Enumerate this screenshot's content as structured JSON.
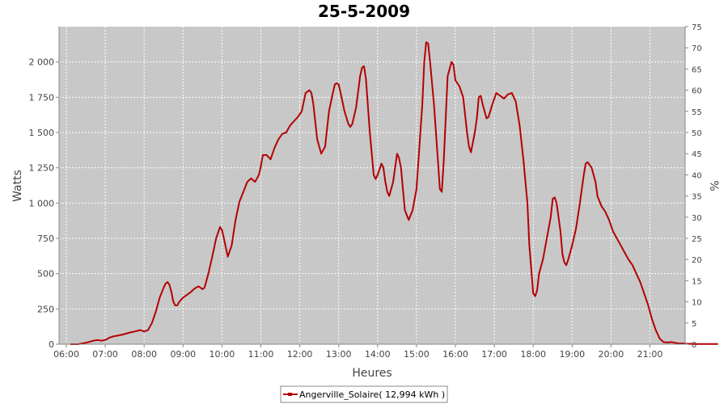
{
  "chart_data": {
    "type": "line",
    "title": "25-5-2009",
    "xlabel": "Heures",
    "ylabel": "Watts",
    "y2label": "%",
    "xlim": [
      6.0,
      22.0
    ],
    "ylim": [
      0,
      2250
    ],
    "y2lim": [
      0,
      75
    ],
    "x_ticks": [
      6,
      7,
      8,
      9,
      10,
      11,
      12,
      13,
      14,
      15,
      16,
      17,
      18,
      19,
      20,
      21
    ],
    "x_tick_labels": [
      "06:00",
      "07:00",
      "08:00",
      "09:00",
      "10:00",
      "11:00",
      "12:00",
      "13:00",
      "14:00",
      "15:00",
      "16:00",
      "17:00",
      "18:00",
      "19:00",
      "20:00",
      "21:00"
    ],
    "y_ticks": [
      0,
      250,
      500,
      750,
      1000,
      1250,
      1500,
      1750,
      2000
    ],
    "y_tick_labels": [
      "0",
      "250",
      "500",
      "750",
      "1 000",
      "1 250",
      "1 500",
      "1 750",
      "2 000"
    ],
    "y2_ticks": [
      0,
      5,
      10,
      15,
      20,
      25,
      30,
      35,
      40,
      45,
      50,
      55,
      60,
      65,
      70,
      75
    ],
    "grid": true,
    "legend_position": "bottom-center",
    "colors": {
      "series": "#b40000",
      "plot_background": "#c8c8c8",
      "grid": "#ffffff"
    },
    "series": [
      {
        "name": "Angerville_Solaire( 12,994 kWh )",
        "points": [
          [
            6.1,
            0
          ],
          [
            6.3,
            0
          ],
          [
            6.5,
            10
          ],
          [
            6.7,
            25
          ],
          [
            6.8,
            30
          ],
          [
            6.9,
            25
          ],
          [
            7.0,
            30
          ],
          [
            7.1,
            45
          ],
          [
            7.2,
            55
          ],
          [
            7.4,
            65
          ],
          [
            7.6,
            80
          ],
          [
            7.75,
            90
          ],
          [
            7.9,
            100
          ],
          [
            8.0,
            90
          ],
          [
            8.1,
            100
          ],
          [
            8.2,
            150
          ],
          [
            8.3,
            230
          ],
          [
            8.4,
            330
          ],
          [
            8.5,
            400
          ],
          [
            8.55,
            430
          ],
          [
            8.6,
            440
          ],
          [
            8.65,
            420
          ],
          [
            8.7,
            370
          ],
          [
            8.75,
            300
          ],
          [
            8.8,
            275
          ],
          [
            8.85,
            275
          ],
          [
            8.9,
            300
          ],
          [
            9.0,
            330
          ],
          [
            9.1,
            350
          ],
          [
            9.2,
            370
          ],
          [
            9.3,
            395
          ],
          [
            9.4,
            410
          ],
          [
            9.45,
            400
          ],
          [
            9.5,
            390
          ],
          [
            9.55,
            400
          ],
          [
            9.65,
            500
          ],
          [
            9.75,
            620
          ],
          [
            9.85,
            750
          ],
          [
            9.95,
            830
          ],
          [
            10.0,
            810
          ],
          [
            10.05,
            750
          ],
          [
            10.15,
            620
          ],
          [
            10.25,
            700
          ],
          [
            10.35,
            880
          ],
          [
            10.45,
            1010
          ],
          [
            10.55,
            1080
          ],
          [
            10.65,
            1150
          ],
          [
            10.75,
            1175
          ],
          [
            10.85,
            1150
          ],
          [
            10.95,
            1200
          ],
          [
            11.0,
            1260
          ],
          [
            11.05,
            1340
          ],
          [
            11.15,
            1340
          ],
          [
            11.25,
            1310
          ],
          [
            11.35,
            1390
          ],
          [
            11.45,
            1450
          ],
          [
            11.55,
            1490
          ],
          [
            11.65,
            1500
          ],
          [
            11.75,
            1550
          ],
          [
            11.85,
            1580
          ],
          [
            11.95,
            1610
          ],
          [
            12.05,
            1650
          ],
          [
            12.15,
            1780
          ],
          [
            12.25,
            1800
          ],
          [
            12.3,
            1780
          ],
          [
            12.35,
            1700
          ],
          [
            12.45,
            1450
          ],
          [
            12.55,
            1350
          ],
          [
            12.65,
            1400
          ],
          [
            12.75,
            1650
          ],
          [
            12.85,
            1780
          ],
          [
            12.9,
            1840
          ],
          [
            12.95,
            1850
          ],
          [
            13.0,
            1840
          ],
          [
            13.05,
            1780
          ],
          [
            13.15,
            1650
          ],
          [
            13.25,
            1560
          ],
          [
            13.3,
            1540
          ],
          [
            13.35,
            1560
          ],
          [
            13.45,
            1680
          ],
          [
            13.55,
            1900
          ],
          [
            13.6,
            1960
          ],
          [
            13.65,
            1970
          ],
          [
            13.7,
            1880
          ],
          [
            13.8,
            1500
          ],
          [
            13.9,
            1200
          ],
          [
            13.95,
            1170
          ],
          [
            14.0,
            1200
          ],
          [
            14.1,
            1280
          ],
          [
            14.15,
            1250
          ],
          [
            14.2,
            1150
          ],
          [
            14.25,
            1080
          ],
          [
            14.3,
            1050
          ],
          [
            14.4,
            1150
          ],
          [
            14.5,
            1350
          ],
          [
            14.55,
            1320
          ],
          [
            14.6,
            1250
          ],
          [
            14.65,
            1100
          ],
          [
            14.7,
            950
          ],
          [
            14.8,
            880
          ],
          [
            14.9,
            950
          ],
          [
            15.0,
            1100
          ],
          [
            15.05,
            1300
          ],
          [
            15.15,
            1700
          ],
          [
            15.2,
            2000
          ],
          [
            15.25,
            2140
          ],
          [
            15.3,
            2130
          ],
          [
            15.35,
            2000
          ],
          [
            15.45,
            1700
          ],
          [
            15.55,
            1300
          ],
          [
            15.6,
            1100
          ],
          [
            15.65,
            1080
          ],
          [
            15.7,
            1300
          ],
          [
            15.8,
            1900
          ],
          [
            15.9,
            2000
          ],
          [
            15.95,
            1980
          ],
          [
            16.0,
            1870
          ],
          [
            16.1,
            1830
          ],
          [
            16.2,
            1750
          ],
          [
            16.3,
            1500
          ],
          [
            16.35,
            1400
          ],
          [
            16.4,
            1360
          ],
          [
            16.5,
            1500
          ],
          [
            16.55,
            1600
          ],
          [
            16.6,
            1750
          ],
          [
            16.65,
            1760
          ],
          [
            16.7,
            1700
          ],
          [
            16.8,
            1600
          ],
          [
            16.85,
            1610
          ],
          [
            16.95,
            1700
          ],
          [
            17.05,
            1780
          ],
          [
            17.15,
            1760
          ],
          [
            17.25,
            1740
          ],
          [
            17.35,
            1770
          ],
          [
            17.45,
            1780
          ],
          [
            17.55,
            1720
          ],
          [
            17.65,
            1550
          ],
          [
            17.75,
            1300
          ],
          [
            17.85,
            1000
          ],
          [
            17.9,
            700
          ],
          [
            18.0,
            360
          ],
          [
            18.05,
            340
          ],
          [
            18.1,
            380
          ],
          [
            18.15,
            500
          ],
          [
            18.25,
            600
          ],
          [
            18.35,
            750
          ],
          [
            18.45,
            900
          ],
          [
            18.5,
            1030
          ],
          [
            18.55,
            1040
          ],
          [
            18.6,
            1000
          ],
          [
            18.7,
            800
          ],
          [
            18.75,
            640
          ],
          [
            18.8,
            580
          ],
          [
            18.85,
            560
          ],
          [
            18.9,
            600
          ],
          [
            19.0,
            700
          ],
          [
            19.1,
            820
          ],
          [
            19.2,
            1000
          ],
          [
            19.3,
            1200
          ],
          [
            19.35,
            1280
          ],
          [
            19.4,
            1290
          ],
          [
            19.5,
            1250
          ],
          [
            19.6,
            1150
          ],
          [
            19.65,
            1050
          ],
          [
            19.75,
            980
          ],
          [
            19.85,
            940
          ],
          [
            19.95,
            880
          ],
          [
            20.05,
            800
          ],
          [
            20.15,
            750
          ],
          [
            20.25,
            700
          ],
          [
            20.35,
            650
          ],
          [
            20.45,
            600
          ],
          [
            20.55,
            560
          ],
          [
            20.65,
            500
          ],
          [
            20.75,
            440
          ],
          [
            20.85,
            360
          ],
          [
            20.95,
            280
          ],
          [
            21.05,
            180
          ],
          [
            21.15,
            100
          ],
          [
            21.25,
            40
          ],
          [
            21.35,
            15
          ],
          [
            21.45,
            12
          ],
          [
            21.55,
            15
          ],
          [
            21.65,
            10
          ],
          [
            21.75,
            5
          ],
          [
            21.85,
            6
          ],
          [
            21.95,
            3
          ],
          [
            22.05,
            3
          ],
          [
            22.15,
            2
          ],
          [
            22.3,
            2
          ],
          [
            22.5,
            1
          ],
          [
            22.75,
            1
          ]
        ]
      }
    ]
  }
}
